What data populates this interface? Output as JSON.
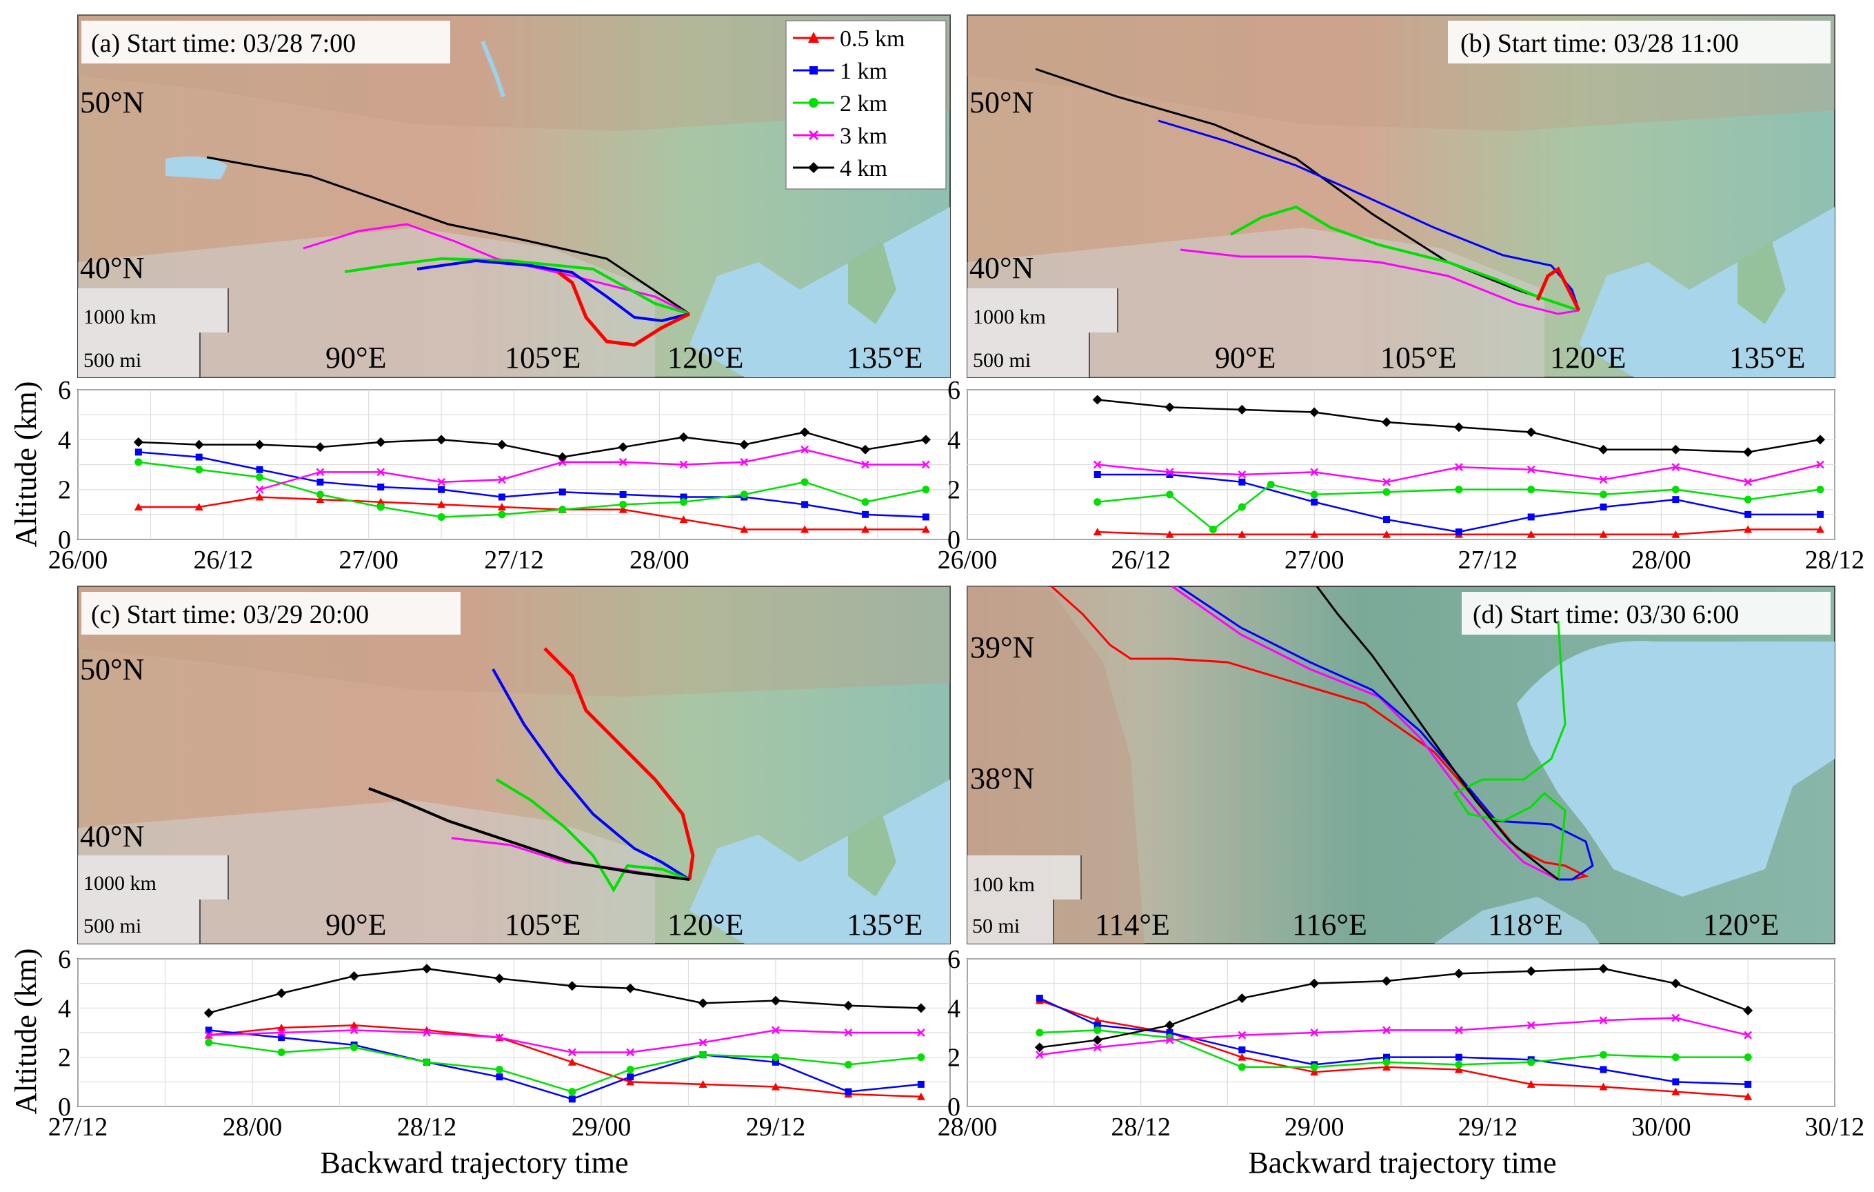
{
  "figure": {
    "y_axis_label": "Altitude (km)",
    "x_axis_label": "Backward trajectory time",
    "colors": {
      "0.5 km": "#ff0000",
      "1 km": "#0000ff",
      "2 km": "#00e000",
      "3 km": "#ff00ff",
      "4 km": "#000000"
    },
    "legend": [
      {
        "label": "0.5 km",
        "marker": "triangle",
        "color": "#ff0000"
      },
      {
        "label": "1 km",
        "marker": "square",
        "color": "#0000ff"
      },
      {
        "label": "2 km",
        "marker": "circle",
        "color": "#00e000"
      },
      {
        "label": "3 km",
        "marker": "x",
        "color": "#ff00ff"
      },
      {
        "label": "4 km",
        "marker": "diamond",
        "color": "#000000"
      }
    ]
  },
  "panels": [
    {
      "id": "a",
      "title": "(a) Start time: 03/28 7:00",
      "map": {
        "lat_labels": [
          "50°N",
          "40°N"
        ],
        "lon_labels": [
          "90°E",
          "105°E",
          "120°E",
          "135°E"
        ],
        "scale_labels": [
          "1000 km",
          "500 mi"
        ]
      }
    },
    {
      "id": "b",
      "title": "(b) Start time: 03/28 11:00",
      "map": {
        "lat_labels": [
          "50°N",
          "40°N"
        ],
        "lon_labels": [
          "90°E",
          "105°E",
          "120°E",
          "135°E"
        ],
        "scale_labels": [
          "1000 km",
          "500 mi"
        ]
      }
    },
    {
      "id": "c",
      "title": "(c) Start time: 03/29 20:00",
      "map": {
        "lat_labels": [
          "50°N",
          "40°N"
        ],
        "lon_labels": [
          "90°E",
          "105°E",
          "120°E",
          "135°E"
        ],
        "scale_labels": [
          "1000 km",
          "500 mi"
        ]
      }
    },
    {
      "id": "d",
      "title": "(d) Start time: 03/30 6:00",
      "map": {
        "lat_labels": [
          "39°N",
          "38°N"
        ],
        "lon_labels": [
          "114°E",
          "116°E",
          "118°E",
          "120°E"
        ],
        "scale_labels": [
          "100 km",
          "50 mi"
        ]
      }
    }
  ],
  "chart_data": [
    {
      "type": "line",
      "title": "(a) Start time: 03/28 7:00",
      "xlabel": "",
      "ylabel": "Altitude (km)",
      "x_unit": "hours since 26/00",
      "xlim": [
        0,
        72
      ],
      "ylim": [
        0,
        6
      ],
      "x_tick_values": [
        0,
        12,
        24,
        36,
        48
      ],
      "x_tick_labels": [
        "26/00",
        "26/12",
        "27/00",
        "27/12",
        "28/00"
      ],
      "y_ticks": [
        0,
        2,
        4,
        6
      ],
      "series": [
        {
          "name": "0.5 km",
          "x": [
            5,
            10,
            15,
            20,
            25,
            30,
            35,
            40,
            45,
            50,
            55,
            60,
            65,
            70
          ],
          "values": [
            1.3,
            1.3,
            1.7,
            1.6,
            1.5,
            1.4,
            1.3,
            1.2,
            1.2,
            0.8,
            0.4,
            0.4,
            0.4,
            0.4
          ]
        },
        {
          "name": "1 km",
          "x": [
            5,
            10,
            15,
            20,
            25,
            30,
            35,
            40,
            45,
            50,
            55,
            60,
            65,
            70
          ],
          "values": [
            3.5,
            3.3,
            2.8,
            2.3,
            2.1,
            2.0,
            1.7,
            1.9,
            1.8,
            1.7,
            1.7,
            1.4,
            1.0,
            0.9
          ]
        },
        {
          "name": "2 km",
          "x": [
            5,
            10,
            15,
            20,
            25,
            30,
            35,
            40,
            45,
            50,
            55,
            60,
            65,
            70
          ],
          "values": [
            3.1,
            2.8,
            2.5,
            1.8,
            1.3,
            0.9,
            1.0,
            1.2,
            1.4,
            1.5,
            1.8,
            2.3,
            1.5,
            2.0
          ]
        },
        {
          "name": "3 km",
          "x": [
            15,
            20,
            25,
            30,
            35,
            40,
            45,
            50,
            55,
            60,
            65,
            70
          ],
          "values": [
            2.0,
            2.7,
            2.7,
            2.3,
            2.4,
            3.1,
            3.1,
            3.0,
            3.1,
            3.6,
            3.0,
            3.0
          ]
        },
        {
          "name": "4 km",
          "x": [
            5,
            10,
            15,
            20,
            25,
            30,
            35,
            40,
            45,
            50,
            55,
            60,
            65,
            70
          ],
          "values": [
            3.9,
            3.8,
            3.8,
            3.7,
            3.9,
            4.0,
            3.8,
            3.3,
            3.7,
            4.1,
            3.8,
            4.3,
            3.6,
            4.0
          ]
        }
      ]
    },
    {
      "type": "line",
      "title": "(b) Start time: 03/28 11:00",
      "xlabel": "",
      "ylabel": "Altitude (km)",
      "x_unit": "hours since 26/00",
      "xlim": [
        0,
        60
      ],
      "ylim": [
        0,
        6
      ],
      "x_tick_values": [
        0,
        12,
        24,
        36,
        48,
        60
      ],
      "x_tick_labels": [
        "26/00",
        "26/12",
        "27/00",
        "27/12",
        "28/00",
        "28/12"
      ],
      "y_ticks": [
        0,
        2,
        4,
        6
      ],
      "series": [
        {
          "name": "0.5 km",
          "x": [
            9,
            14,
            19,
            24,
            29,
            34,
            39,
            44,
            49,
            54,
            59
          ],
          "values": [
            0.3,
            0.2,
            0.2,
            0.2,
            0.2,
            0.2,
            0.2,
            0.2,
            0.2,
            0.4,
            0.4
          ]
        },
        {
          "name": "1 km",
          "x": [
            9,
            14,
            19,
            24,
            29,
            34,
            39,
            44,
            49,
            54,
            59
          ],
          "values": [
            2.6,
            2.6,
            2.3,
            1.5,
            0.8,
            0.3,
            0.9,
            1.3,
            1.6,
            1.0,
            1.0
          ]
        },
        {
          "name": "2 km",
          "x": [
            9,
            14,
            17,
            19,
            21,
            24,
            29,
            34,
            39,
            44,
            49,
            54,
            59
          ],
          "values": [
            1.5,
            1.8,
            0.4,
            1.3,
            2.2,
            1.8,
            1.9,
            2.0,
            2.0,
            1.8,
            2.0,
            1.6,
            2.0
          ]
        },
        {
          "name": "3 km",
          "x": [
            9,
            14,
            19,
            24,
            29,
            34,
            39,
            44,
            49,
            54,
            59
          ],
          "values": [
            3.0,
            2.7,
            2.6,
            2.7,
            2.3,
            2.9,
            2.8,
            2.4,
            2.9,
            2.3,
            3.0
          ]
        },
        {
          "name": "4 km",
          "x": [
            9,
            14,
            19,
            24,
            29,
            34,
            39,
            44,
            49,
            54,
            59
          ],
          "values": [
            5.6,
            5.3,
            5.2,
            5.1,
            4.7,
            4.5,
            4.3,
            3.6,
            3.6,
            3.5,
            4.0
          ]
        }
      ]
    },
    {
      "type": "line",
      "title": "(c) Start time: 03/29 20:00",
      "xlabel": "Backward trajectory time",
      "ylabel": "Altitude (km)",
      "x_unit": "hours since 27/12",
      "xlim": [
        0,
        60
      ],
      "ylim": [
        0,
        6
      ],
      "x_tick_values": [
        0,
        12,
        24,
        36,
        48
      ],
      "x_tick_labels": [
        "27/12",
        "28/00",
        "28/12",
        "29/00",
        "29/12"
      ],
      "y_ticks": [
        0,
        2,
        4,
        6
      ],
      "series": [
        {
          "name": "0.5 km",
          "x": [
            9,
            14,
            19,
            24,
            29,
            34,
            38,
            43,
            48,
            53,
            58
          ],
          "values": [
            2.9,
            3.2,
            3.3,
            3.1,
            2.8,
            1.8,
            1.0,
            0.9,
            0.8,
            0.5,
            0.4
          ]
        },
        {
          "name": "1 km",
          "x": [
            9,
            14,
            19,
            24,
            29,
            34,
            38,
            43,
            48,
            53,
            58
          ],
          "values": [
            3.1,
            2.8,
            2.5,
            1.8,
            1.2,
            0.3,
            1.2,
            2.1,
            1.8,
            0.6,
            0.9
          ]
        },
        {
          "name": "2 km",
          "x": [
            9,
            14,
            19,
            24,
            29,
            34,
            38,
            43,
            48,
            53,
            58
          ],
          "values": [
            2.6,
            2.2,
            2.4,
            1.8,
            1.5,
            0.6,
            1.5,
            2.1,
            2.0,
            1.7,
            2.0
          ]
        },
        {
          "name": "3 km",
          "x": [
            9,
            14,
            19,
            24,
            29,
            34,
            38,
            43,
            48,
            53,
            58
          ],
          "values": [
            2.9,
            3.0,
            3.1,
            3.0,
            2.8,
            2.2,
            2.2,
            2.6,
            3.1,
            3.0,
            3.0
          ]
        },
        {
          "name": "4 km",
          "x": [
            9,
            14,
            19,
            24,
            29,
            34,
            38,
            43,
            48,
            53,
            58
          ],
          "values": [
            3.8,
            4.6,
            5.3,
            5.6,
            5.2,
            4.9,
            4.8,
            4.2,
            4.3,
            4.1,
            4.0
          ]
        }
      ]
    },
    {
      "type": "line",
      "title": "(d) Start time: 03/30 6:00",
      "xlabel": "Backward trajectory time",
      "ylabel": "Altitude (km)",
      "x_unit": "hours since 28/00",
      "xlim": [
        0,
        60
      ],
      "ylim": [
        0,
        6
      ],
      "x_tick_values": [
        0,
        12,
        24,
        36,
        48,
        60
      ],
      "x_tick_labels": [
        "28/00",
        "28/12",
        "29/00",
        "29/12",
        "30/00",
        "30/12"
      ],
      "y_ticks": [
        0,
        2,
        4,
        6
      ],
      "series": [
        {
          "name": "0.5 km",
          "x": [
            5,
            9,
            14,
            19,
            24,
            29,
            34,
            39,
            44,
            49,
            54
          ],
          "values": [
            4.3,
            3.5,
            3.0,
            2.0,
            1.4,
            1.6,
            1.5,
            0.9,
            0.8,
            0.6,
            0.4
          ]
        },
        {
          "name": "1 km",
          "x": [
            5,
            9,
            14,
            19,
            24,
            29,
            34,
            39,
            44,
            49,
            54
          ],
          "values": [
            4.4,
            3.3,
            3.0,
            2.3,
            1.7,
            2.0,
            2.0,
            1.9,
            1.5,
            1.0,
            0.9
          ]
        },
        {
          "name": "2 km",
          "x": [
            5,
            9,
            14,
            19,
            24,
            29,
            34,
            39,
            44,
            49,
            54
          ],
          "values": [
            3.0,
            3.1,
            2.8,
            1.6,
            1.6,
            1.8,
            1.7,
            1.8,
            2.1,
            2.0,
            2.0
          ]
        },
        {
          "name": "3 km",
          "x": [
            5,
            9,
            14,
            19,
            24,
            29,
            34,
            39,
            44,
            49,
            54
          ],
          "values": [
            2.1,
            2.4,
            2.7,
            2.9,
            3.0,
            3.1,
            3.1,
            3.3,
            3.5,
            3.6,
            2.9
          ]
        },
        {
          "name": "4 km",
          "x": [
            5,
            9,
            14,
            19,
            24,
            29,
            34,
            39,
            44,
            49,
            54
          ],
          "values": [
            2.4,
            2.7,
            3.3,
            4.4,
            5.0,
            5.1,
            5.4,
            5.5,
            5.6,
            5.0,
            3.9
          ]
        }
      ]
    }
  ]
}
